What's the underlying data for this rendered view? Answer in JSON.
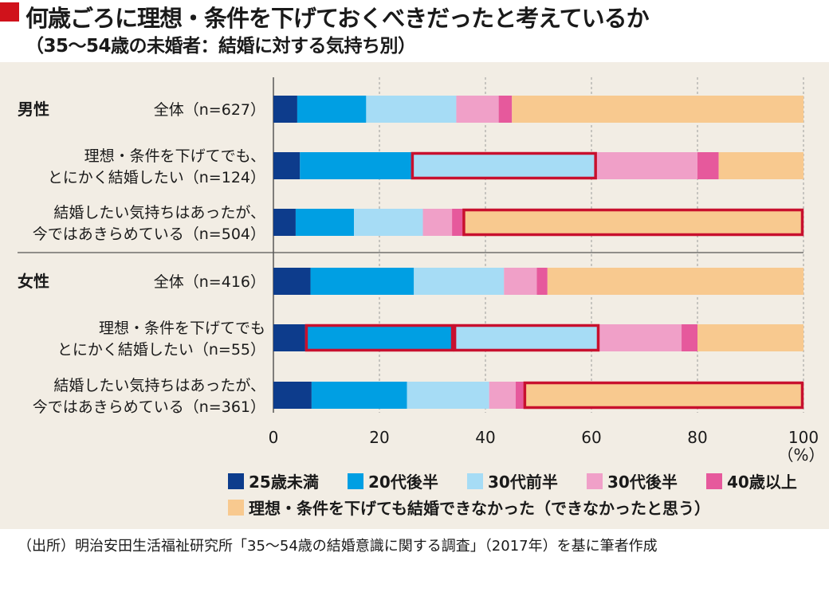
{
  "title": "何歳ごろに理想・条件を下げておくべきだったと考えているか",
  "subtitle": "（35〜54歳の未婚者：結婚に対する気持ち別）",
  "source": "（出所）明治安田生活福祉研究所「35〜54歳の結婚意識に関する調査」（2017年）を基に筆者作成",
  "chart_data": {
    "type": "bar",
    "orientation": "horizontal",
    "stacked": true,
    "unit": "%",
    "xlim": [
      0,
      100
    ],
    "xticks": [
      0,
      20,
      40,
      60,
      80,
      100
    ],
    "grid": true,
    "legend_position": "bottom",
    "groups": [
      {
        "label": "男性",
        "row_start": 0
      },
      {
        "label": "女性",
        "row_start": 3
      }
    ],
    "categories": [
      [
        "全体（n=627）"
      ],
      [
        "理想・条件を下げてでも、",
        "とにかく結婚したい（n=124）"
      ],
      [
        "結婚したい気持ちはあったが、",
        "今ではあきらめている（n=504）"
      ],
      [
        "全体（n=416）"
      ],
      [
        "理想・条件を下げてでも",
        "とにかく結婚したい（n=55）"
      ],
      [
        "結婚したい気持ちはあったが、",
        "今ではあきらめている（n=361）"
      ]
    ],
    "series": [
      {
        "name": "25歳未満",
        "color": "#0d3c8c",
        "values": [
          4.5,
          5.0,
          4.2,
          7.0,
          6.0,
          7.2
        ]
      },
      {
        "name": "20代後半",
        "color": "#009fe3",
        "values": [
          13.0,
          21.0,
          11.0,
          19.5,
          28.0,
          18.0
        ]
      },
      {
        "name": "30代前半",
        "color": "#a6dcf5",
        "values": [
          17.0,
          35.0,
          13.0,
          17.0,
          27.5,
          15.5
        ]
      },
      {
        "name": "30代後半",
        "color": "#f0a0c8",
        "values": [
          8.0,
          19.0,
          5.5,
          6.2,
          15.5,
          5.0
        ]
      },
      {
        "name": "40歳以上",
        "color": "#e6599c",
        "values": [
          2.5,
          4.0,
          2.0,
          2.0,
          3.0,
          1.5
        ]
      },
      {
        "name": "理想・条件を下げても結婚できなかった（できなかったと思う）",
        "color": "#f8c98f",
        "values": [
          55.0,
          16.0,
          64.3,
          48.3,
          20.0,
          52.8
        ]
      }
    ],
    "highlights": [
      {
        "row": 1,
        "series": [
          2
        ]
      },
      {
        "row": 2,
        "series": [
          5
        ]
      },
      {
        "row": 4,
        "series": [
          1
        ]
      },
      {
        "row": 4,
        "series": [
          2
        ]
      },
      {
        "row": 5,
        "series": [
          5
        ]
      }
    ],
    "x_unit_label": "（%）"
  }
}
